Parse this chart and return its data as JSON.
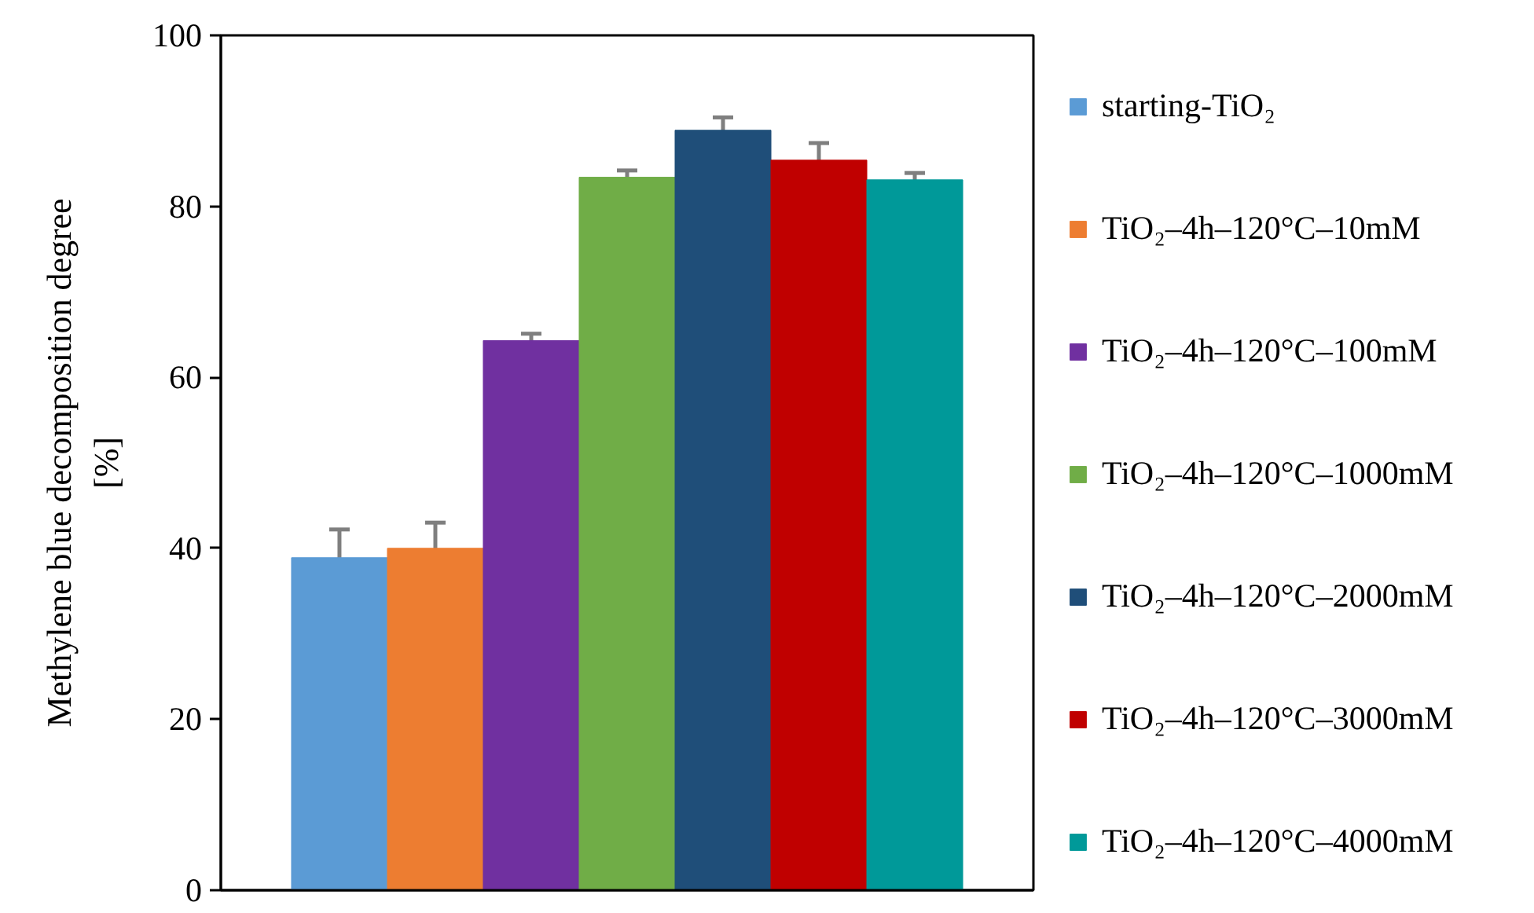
{
  "chart_data": {
    "type": "bar",
    "ylabel": "Methylene blue decomposition degree [%]",
    "categories": [
      null
    ],
    "series": [
      {
        "name": "starting-TiO₂",
        "color": "#5b9bd5",
        "values": [
          38.9
        ],
        "errors": [
          3.3
        ]
      },
      {
        "name": "TiO₂–4h–120°C–10mM",
        "color": "#ed7d31",
        "values": [
          40.0
        ],
        "errors": [
          3.0
        ]
      },
      {
        "name": "TiO₂–4h–120°C–100mM",
        "color": "#7030a0",
        "values": [
          64.3
        ],
        "errors": [
          0.8
        ]
      },
      {
        "name": "TiO₂–4h–120°C–1000mM",
        "color": "#70ad47",
        "values": [
          83.4
        ],
        "errors": [
          0.8
        ]
      },
      {
        "name": "TiO₂–4h–120°C–2000mM",
        "color": "#1f4e79",
        "values": [
          88.9
        ],
        "errors": [
          1.5
        ]
      },
      {
        "name": "TiO₂–4h–120°C–3000mM",
        "color": "#c00000",
        "values": [
          85.4
        ],
        "errors": [
          2.0
        ]
      },
      {
        "name": "TiO₂–4h–120°C–4000mM",
        "color": "#009999",
        "values": [
          83.1
        ],
        "errors": [
          0.8
        ]
      }
    ],
    "ylim": [
      0,
      100
    ],
    "yticks": [
      0,
      20,
      40,
      60,
      80,
      100
    ],
    "legend": "right",
    "tick_labels": "y"
  }
}
